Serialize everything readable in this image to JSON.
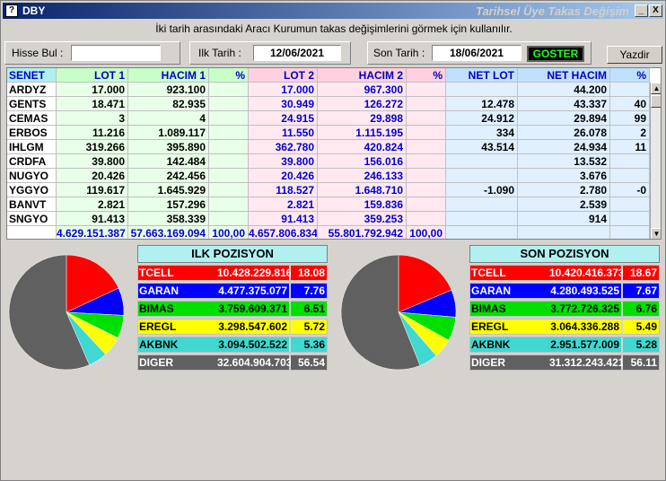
{
  "window": {
    "title": "DBY",
    "right_title": "Tarihsel Üye Takas Değişim",
    "min_label": "_",
    "close_label": "X"
  },
  "info_text": "İki tarih arasındaki  Aracı Kurumun takas değişimlerini görmek için kullanılır.",
  "form": {
    "hisse_label": "Hisse Bul :",
    "hisse_value": "",
    "ilk_label": "Ilk Tarih :",
    "ilk_value": "12/06/2021",
    "son_label": "Son Tarih :",
    "son_value": "18/06/2021",
    "goster_label": "GOSTER",
    "yazdir_label": "Yazdir"
  },
  "grid": {
    "headers": [
      "SENET",
      "LOT 1",
      "HACIM 1",
      "%",
      "LOT 2",
      "HACIM 2",
      "%",
      "NET LOT",
      "NET HACIM",
      "%"
    ],
    "rows": [
      [
        "ARDYZ",
        "17.000",
        "923.100",
        "",
        "17.000",
        "967.300",
        "",
        "",
        "44.200",
        ""
      ],
      [
        "GENTS",
        "18.471",
        "82.935",
        "",
        "30.949",
        "126.272",
        "",
        "12.478",
        "43.337",
        "40"
      ],
      [
        "CEMAS",
        "3",
        "4",
        "",
        "24.915",
        "29.898",
        "",
        "24.912",
        "29.894",
        "99"
      ],
      [
        "ERBOS",
        "11.216",
        "1.089.117",
        "",
        "11.550",
        "1.115.195",
        "",
        "334",
        "26.078",
        "2"
      ],
      [
        "IHLGM",
        "319.266",
        "395.890",
        "",
        "362.780",
        "420.824",
        "",
        "43.514",
        "24.934",
        "11"
      ],
      [
        "CRDFA",
        "39.800",
        "142.484",
        "",
        "39.800",
        "156.016",
        "",
        "",
        "13.532",
        ""
      ],
      [
        "NUGYO",
        "20.426",
        "242.456",
        "",
        "20.426",
        "246.133",
        "",
        "",
        "3.676",
        ""
      ],
      [
        "YGGYO",
        "119.617",
        "1.645.929",
        "",
        "118.527",
        "1.648.710",
        "",
        "-1.090",
        "2.780",
        "-0"
      ],
      [
        "BANVT",
        "2.821",
        "157.296",
        "",
        "2.821",
        "159.836",
        "",
        "",
        "2.539",
        ""
      ],
      [
        "SNGYO",
        "91.413",
        "358.339",
        "",
        "91.413",
        "359.253",
        "",
        "",
        "914",
        ""
      ]
    ],
    "totals": [
      "",
      "4.629.151.387",
      "57.663.169.094",
      "100,00",
      "4.657.806.834",
      "55.801.792.942",
      "100,00",
      "",
      "",
      ""
    ]
  },
  "ilk_pozisyon": {
    "title": "ILK POZISYON",
    "rows": [
      {
        "name": "TCELL",
        "value": "10.428.229.816",
        "pct": "18.08",
        "pct_num": 18.08,
        "color": "#ff0000"
      },
      {
        "name": "GARAN",
        "value": "4.477.375.077",
        "pct": "7.76",
        "pct_num": 7.76,
        "color": "#0000ff"
      },
      {
        "name": "BIMAS",
        "value": "3.759.609.371",
        "pct": "6.51",
        "pct_num": 6.51,
        "color": "#00e000"
      },
      {
        "name": "EREGL",
        "value": "3.298.547.602",
        "pct": "5.72",
        "pct_num": 5.72,
        "color": "#ffff00"
      },
      {
        "name": "AKBNK",
        "value": "3.094.502.522",
        "pct": "5.36",
        "pct_num": 5.36,
        "color": "#40d8d0"
      },
      {
        "name": "DIGER",
        "value": "32.604.904.703",
        "pct": "56.54",
        "pct_num": 56.54,
        "color": "#606060"
      }
    ]
  },
  "son_pozisyon": {
    "title": "SON POZISYON",
    "rows": [
      {
        "name": "TCELL",
        "value": "10.420.416.373",
        "pct": "18.67",
        "pct_num": 18.67,
        "color": "#ff0000"
      },
      {
        "name": "GARAN",
        "value": "4.280.493.525",
        "pct": "7.67",
        "pct_num": 7.67,
        "color": "#0000ff"
      },
      {
        "name": "BIMAS",
        "value": "3.772.726.325",
        "pct": "6.76",
        "pct_num": 6.76,
        "color": "#00e000"
      },
      {
        "name": "EREGL",
        "value": "3.064.336.288",
        "pct": "5.49",
        "pct_num": 5.49,
        "color": "#ffff00"
      },
      {
        "name": "AKBNK",
        "value": "2.951.577.009",
        "pct": "5.28",
        "pct_num": 5.28,
        "color": "#40d8d0"
      },
      {
        "name": "DIGER",
        "value": "31.312.243.421",
        "pct": "56.11",
        "pct_num": 56.11,
        "color": "#606060"
      }
    ]
  },
  "chart_data": [
    {
      "type": "pie",
      "categories": [
        "TCELL",
        "GARAN",
        "BIMAS",
        "EREGL",
        "AKBNK",
        "DIGER"
      ],
      "values": [
        18.08,
        7.76,
        6.51,
        5.72,
        5.36,
        56.54
      ]
    },
    {
      "type": "pie",
      "categories": [
        "TCELL",
        "GARAN",
        "BIMAS",
        "EREGL",
        "AKBNK",
        "DIGER"
      ],
      "values": [
        18.67,
        7.67,
        6.76,
        5.49,
        5.28,
        56.11
      ]
    }
  ]
}
